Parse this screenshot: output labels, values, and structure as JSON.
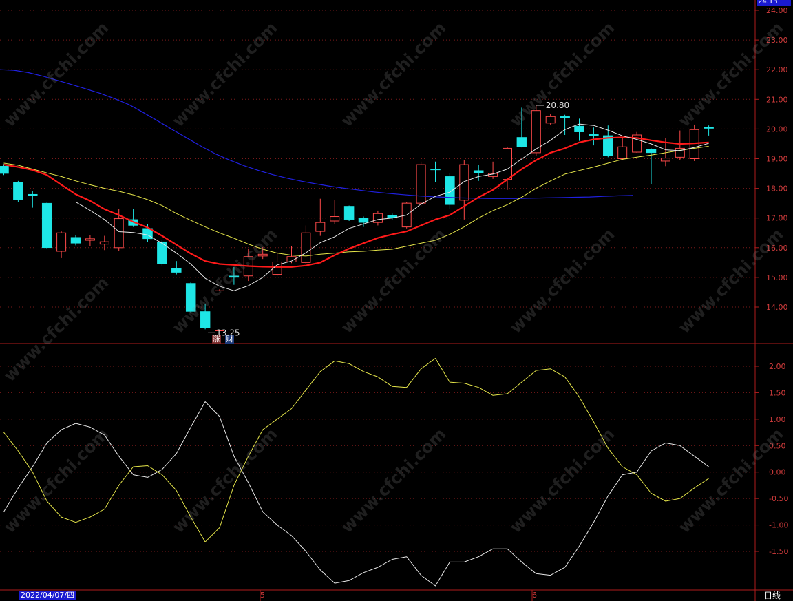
{
  "header": {
    "current_price_tag": "24.13"
  },
  "footer": {
    "start_date": "2022/04/07/四",
    "month_labels": [
      "5",
      "6"
    ],
    "period_label": "日线"
  },
  "annotations": {
    "high_label": "20.80",
    "low_label": "13.25",
    "badges": [
      {
        "text": "涨",
        "bg": "#7a2a2a",
        "fg": "#ffffff"
      },
      {
        "text": "财",
        "bg": "#1e3a7a",
        "fg": "#ffffff"
      }
    ]
  },
  "watermark": "www.cfchi.com",
  "colors": {
    "up": "#ff4a4a",
    "down": "#1ee6e6",
    "ma_white": "#e8e8e8",
    "ma_red": "#ff1a1a",
    "ma_yellow": "#e6e64a",
    "ma_blue": "#2020e0",
    "grid": "#7a1a1a",
    "axis_text": "#d23c3c"
  },
  "chart_data": [
    {
      "type": "candlestick",
      "ylim": [
        13.0,
        24.13
      ],
      "y_ticks": [
        "24.00",
        "23.00",
        "22.00",
        "21.00",
        "20.00",
        "19.00",
        "18.00",
        "17.00",
        "16.00",
        "15.00",
        "14.00"
      ],
      "candles": [
        {
          "o": 18.75,
          "h": 18.82,
          "l": 18.45,
          "c": 18.5
        },
        {
          "o": 18.2,
          "h": 18.25,
          "l": 17.55,
          "c": 17.62
        },
        {
          "o": 17.8,
          "h": 17.92,
          "l": 17.35,
          "c": 17.75
        },
        {
          "o": 17.5,
          "h": 17.52,
          "l": 15.95,
          "c": 16.0
        },
        {
          "o": 15.88,
          "h": 16.55,
          "l": 15.65,
          "c": 16.5
        },
        {
          "o": 16.35,
          "h": 16.42,
          "l": 16.08,
          "c": 16.15
        },
        {
          "o": 16.25,
          "h": 16.42,
          "l": 16.05,
          "c": 16.3
        },
        {
          "o": 16.12,
          "h": 16.4,
          "l": 15.92,
          "c": 16.2
        },
        {
          "o": 16.0,
          "h": 17.3,
          "l": 15.9,
          "c": 16.98
        },
        {
          "o": 16.95,
          "h": 17.3,
          "l": 16.7,
          "c": 16.75
        },
        {
          "o": 16.65,
          "h": 16.8,
          "l": 16.2,
          "c": 16.3
        },
        {
          "o": 16.2,
          "h": 16.25,
          "l": 15.4,
          "c": 15.45
        },
        {
          "o": 15.3,
          "h": 15.55,
          "l": 15.1,
          "c": 15.17
        },
        {
          "o": 14.8,
          "h": 14.85,
          "l": 13.8,
          "c": 13.85
        },
        {
          "o": 13.85,
          "h": 14.1,
          "l": 13.25,
          "c": 13.3
        },
        {
          "o": 13.2,
          "h": 14.6,
          "l": 13.2,
          "c": 14.55
        },
        {
          "o": 15.05,
          "h": 15.35,
          "l": 14.75,
          "c": 15.0
        },
        {
          "o": 15.05,
          "h": 15.95,
          "l": 14.88,
          "c": 15.7
        },
        {
          "o": 15.72,
          "h": 16.02,
          "l": 15.62,
          "c": 15.78
        },
        {
          "o": 15.1,
          "h": 15.85,
          "l": 15.05,
          "c": 15.52
        },
        {
          "o": 15.52,
          "h": 16.05,
          "l": 15.48,
          "c": 15.7
        },
        {
          "o": 15.5,
          "h": 16.75,
          "l": 15.45,
          "c": 16.5
        },
        {
          "o": 16.55,
          "h": 17.65,
          "l": 16.4,
          "c": 16.85
        },
        {
          "o": 16.9,
          "h": 17.6,
          "l": 16.8,
          "c": 17.05
        },
        {
          "o": 17.4,
          "h": 17.42,
          "l": 16.9,
          "c": 16.95
        },
        {
          "o": 17.0,
          "h": 17.05,
          "l": 16.7,
          "c": 16.85
        },
        {
          "o": 16.85,
          "h": 17.25,
          "l": 16.75,
          "c": 17.15
        },
        {
          "o": 17.1,
          "h": 17.15,
          "l": 16.95,
          "c": 17.0
        },
        {
          "o": 16.7,
          "h": 17.55,
          "l": 16.65,
          "c": 17.5
        },
        {
          "o": 17.5,
          "h": 18.9,
          "l": 17.4,
          "c": 18.8
        },
        {
          "o": 18.65,
          "h": 18.9,
          "l": 18.2,
          "c": 18.62
        },
        {
          "o": 18.4,
          "h": 18.5,
          "l": 17.3,
          "c": 17.45
        },
        {
          "o": 17.6,
          "h": 18.95,
          "l": 16.95,
          "c": 18.8
        },
        {
          "o": 18.6,
          "h": 18.8,
          "l": 18.25,
          "c": 18.52
        },
        {
          "o": 18.4,
          "h": 18.9,
          "l": 18.32,
          "c": 18.5
        },
        {
          "o": 18.3,
          "h": 19.4,
          "l": 17.95,
          "c": 19.35
        },
        {
          "o": 19.72,
          "h": 20.72,
          "l": 19.38,
          "c": 19.4
        },
        {
          "o": 19.2,
          "h": 20.8,
          "l": 19.1,
          "c": 20.62
        },
        {
          "o": 20.2,
          "h": 20.5,
          "l": 20.15,
          "c": 20.42
        },
        {
          "o": 20.42,
          "h": 20.48,
          "l": 19.8,
          "c": 20.38
        },
        {
          "o": 20.1,
          "h": 20.35,
          "l": 19.6,
          "c": 19.9
        },
        {
          "o": 19.82,
          "h": 20.05,
          "l": 19.45,
          "c": 19.78
        },
        {
          "o": 19.78,
          "h": 20.12,
          "l": 19.05,
          "c": 19.1
        },
        {
          "o": 19.0,
          "h": 19.7,
          "l": 18.95,
          "c": 19.4
        },
        {
          "o": 19.22,
          "h": 19.9,
          "l": 19.2,
          "c": 19.8
        },
        {
          "o": 19.32,
          "h": 19.35,
          "l": 18.15,
          "c": 19.2
        },
        {
          "o": 18.92,
          "h": 19.7,
          "l": 18.75,
          "c": 19.02
        },
        {
          "o": 19.05,
          "h": 19.95,
          "l": 18.95,
          "c": 19.35
        },
        {
          "o": 19.0,
          "h": 20.15,
          "l": 18.92,
          "c": 19.98
        },
        {
          "o": 20.05,
          "h": 20.12,
          "l": 19.78,
          "c": 20.02
        }
      ],
      "ma_short_white": [
        null,
        null,
        null,
        null,
        null,
        17.54,
        17.26,
        16.95,
        16.54,
        16.51,
        16.43,
        16.15,
        15.82,
        15.45,
        14.97,
        14.7,
        14.55,
        14.72,
        15.0,
        15.42,
        15.55,
        15.83,
        16.17,
        16.37,
        16.65,
        16.8,
        16.95,
        17.0,
        17.1,
        17.47,
        17.73,
        17.87,
        18.23,
        18.4,
        18.48,
        18.65,
        18.99,
        19.33,
        19.62,
        19.98,
        20.17,
        20.12,
        19.96,
        19.77,
        19.65,
        19.5,
        19.3,
        19.27,
        19.38,
        19.52
      ],
      "ma_mid_red": [
        18.8,
        18.72,
        18.62,
        18.45,
        18.12,
        17.8,
        17.58,
        17.3,
        17.1,
        16.87,
        16.68,
        16.4,
        16.1,
        15.8,
        15.55,
        15.45,
        15.42,
        15.38,
        15.36,
        15.35,
        15.35,
        15.4,
        15.5,
        15.75,
        15.97,
        16.15,
        16.33,
        16.45,
        16.55,
        16.75,
        16.95,
        17.1,
        17.4,
        17.7,
        17.95,
        18.3,
        18.65,
        18.95,
        19.2,
        19.35,
        19.55,
        19.65,
        19.7,
        19.72,
        19.7,
        19.62,
        19.55,
        19.5,
        19.52,
        19.55
      ],
      "ma_long_yellow": [
        18.85,
        18.78,
        18.65,
        18.52,
        18.4,
        18.25,
        18.12,
        18.0,
        17.9,
        17.78,
        17.62,
        17.42,
        17.15,
        16.92,
        16.7,
        16.5,
        16.32,
        16.12,
        15.95,
        15.82,
        15.75,
        15.72,
        15.78,
        15.82,
        15.86,
        15.88,
        15.92,
        15.95,
        16.05,
        16.15,
        16.25,
        16.45,
        16.7,
        17.0,
        17.25,
        17.45,
        17.7,
        18.0,
        18.25,
        18.48,
        18.6,
        18.72,
        18.85,
        18.98,
        19.05,
        19.12,
        19.2,
        19.28,
        19.35,
        19.42
      ],
      "ma_longest_blue": [
        21.98,
        21.9,
        21.78,
        21.64,
        21.5,
        21.35,
        21.2,
        21.02,
        20.82,
        20.55,
        20.27,
        19.98,
        19.7,
        19.42,
        19.16,
        18.95,
        18.76,
        18.6,
        18.46,
        18.34,
        18.24,
        18.15,
        18.07,
        18.0,
        17.94,
        17.88,
        17.83,
        17.79,
        17.75,
        17.72,
        17.7,
        17.68,
        17.67,
        17.66,
        17.66,
        17.66,
        17.67,
        17.68,
        17.69,
        17.7,
        17.71,
        17.73,
        17.75,
        17.76
      ]
    },
    {
      "type": "line",
      "ylim": [
        -2.2,
        2.4
      ],
      "y_ticks": [
        "2.00",
        "1.50",
        "1.00",
        "0.50",
        "0.00",
        "-0.50",
        "-1.00",
        "-1.50"
      ],
      "series": [
        {
          "color": "#e8e8e8",
          "values": [
            -0.75,
            -0.3,
            0.1,
            0.55,
            0.8,
            0.92,
            0.85,
            0.7,
            0.3,
            -0.05,
            -0.1,
            0.05,
            0.35,
            0.85,
            1.33,
            1.05,
            0.3,
            -0.2,
            -0.75,
            -1.0,
            -1.2,
            -1.5,
            -1.85,
            -2.1,
            -2.05,
            -1.9,
            -1.8,
            -1.65,
            -1.6,
            -1.95,
            -2.15,
            -1.7,
            -1.7,
            -1.6,
            -1.45,
            -1.45,
            -1.7,
            -1.92,
            -1.95,
            -1.8,
            -1.4,
            -0.95,
            -0.45,
            -0.05,
            0.0,
            0.4,
            0.55,
            0.5,
            0.3,
            0.1
          ]
        },
        {
          "color": "#e6e64a",
          "values": [
            0.75,
            0.4,
            0.0,
            -0.55,
            -0.85,
            -0.95,
            -0.85,
            -0.7,
            -0.25,
            0.1,
            0.12,
            -0.05,
            -0.35,
            -0.85,
            -1.32,
            -1.05,
            -0.25,
            0.3,
            0.8,
            1.0,
            1.2,
            1.55,
            1.9,
            2.1,
            2.05,
            1.9,
            1.8,
            1.62,
            1.6,
            1.95,
            2.15,
            1.7,
            1.68,
            1.6,
            1.45,
            1.48,
            1.7,
            1.92,
            1.95,
            1.8,
            1.42,
            0.95,
            0.45,
            0.1,
            -0.05,
            -0.4,
            -0.55,
            -0.5,
            -0.3,
            -0.12
          ]
        }
      ]
    }
  ]
}
